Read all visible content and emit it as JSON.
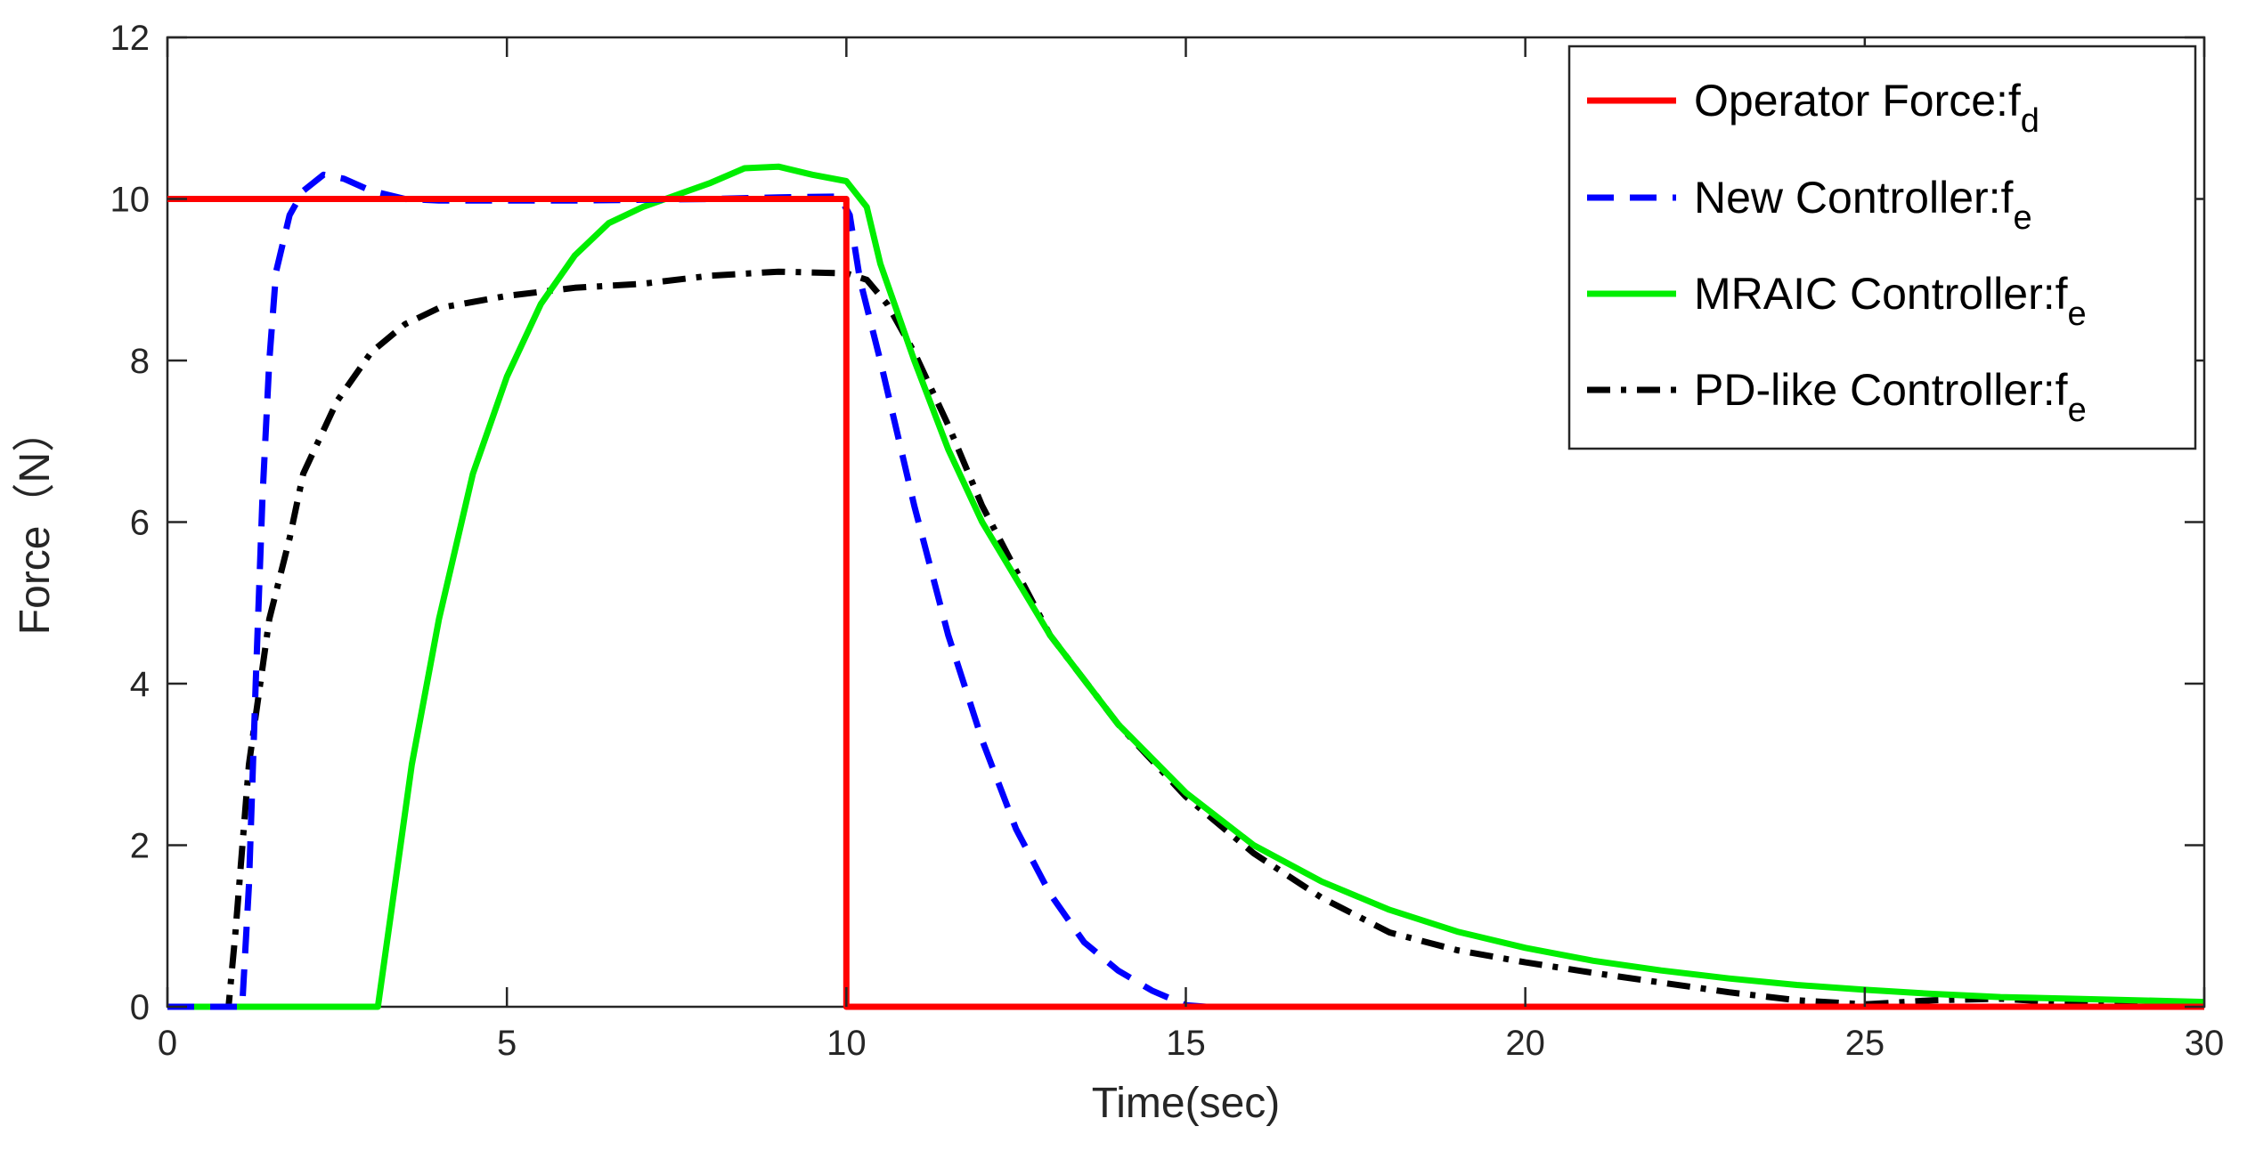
{
  "chart_data": {
    "type": "line",
    "xlabel": "Time(sec)",
    "ylabel": "Force（N）",
    "xlim": [
      0,
      30
    ],
    "ylim": [
      0,
      12
    ],
    "xticks": [
      0,
      5,
      10,
      15,
      20,
      25,
      30
    ],
    "yticks": [
      0,
      2,
      4,
      6,
      8,
      10,
      12
    ],
    "grid": false,
    "legend_position": "top-right",
    "series": [
      {
        "name": "Operator Force:f",
        "subscript": "d",
        "color": "#ff0000",
        "style": "solid",
        "points": [
          [
            0,
            10
          ],
          [
            10,
            10
          ],
          [
            10,
            0
          ],
          [
            30,
            0
          ]
        ]
      },
      {
        "name": "New Controller:f",
        "subscript": "e",
        "color": "#0000ff",
        "style": "dashed",
        "points": [
          [
            0,
            0
          ],
          [
            1.1,
            0
          ],
          [
            1.2,
            1.5
          ],
          [
            1.3,
            4
          ],
          [
            1.4,
            6.3
          ],
          [
            1.5,
            8
          ],
          [
            1.6,
            9.1
          ],
          [
            1.8,
            9.8
          ],
          [
            2.0,
            10.1
          ],
          [
            2.3,
            10.3
          ],
          [
            2.6,
            10.25
          ],
          [
            3.0,
            10.1
          ],
          [
            3.5,
            10.0
          ],
          [
            4,
            9.98
          ],
          [
            6,
            9.98
          ],
          [
            8,
            10.0
          ],
          [
            9,
            10.02
          ],
          [
            9.9,
            10.03
          ],
          [
            10.05,
            9.8
          ],
          [
            10.2,
            9.0
          ],
          [
            10.5,
            8.0
          ],
          [
            11,
            6.2
          ],
          [
            11.5,
            4.6
          ],
          [
            12,
            3.3
          ],
          [
            12.5,
            2.2
          ],
          [
            13,
            1.4
          ],
          [
            13.5,
            0.8
          ],
          [
            14,
            0.45
          ],
          [
            14.5,
            0.2
          ],
          [
            15,
            0.02
          ],
          [
            15.3,
            0
          ],
          [
            30,
            0
          ]
        ]
      },
      {
        "name": "MRAIC Controller:f",
        "subscript": "e",
        "color": "#00ee00",
        "style": "solid",
        "points": [
          [
            0,
            0
          ],
          [
            3.1,
            0
          ],
          [
            3.3,
            1.2
          ],
          [
            3.6,
            3.0
          ],
          [
            4,
            4.8
          ],
          [
            4.5,
            6.6
          ],
          [
            5,
            7.8
          ],
          [
            5.5,
            8.7
          ],
          [
            6,
            9.3
          ],
          [
            6.5,
            9.7
          ],
          [
            7,
            9.9
          ],
          [
            7.5,
            10.05
          ],
          [
            8,
            10.2
          ],
          [
            8.5,
            10.38
          ],
          [
            9,
            10.4
          ],
          [
            9.5,
            10.3
          ],
          [
            10.0,
            10.22
          ],
          [
            10.3,
            9.9
          ],
          [
            10.5,
            9.2
          ],
          [
            11,
            8.0
          ],
          [
            11.5,
            6.9
          ],
          [
            12,
            6.0
          ],
          [
            13,
            4.6
          ],
          [
            14,
            3.5
          ],
          [
            15,
            2.65
          ],
          [
            16,
            2.0
          ],
          [
            17,
            1.55
          ],
          [
            18,
            1.2
          ],
          [
            19,
            0.93
          ],
          [
            20,
            0.73
          ],
          [
            21,
            0.57
          ],
          [
            22,
            0.45
          ],
          [
            23,
            0.35
          ],
          [
            24,
            0.27
          ],
          [
            25,
            0.21
          ],
          [
            26,
            0.16
          ],
          [
            27,
            0.12
          ],
          [
            28,
            0.1
          ],
          [
            29,
            0.08
          ],
          [
            30,
            0.06
          ]
        ]
      },
      {
        "name": "PD-like Controller:f",
        "subscript": "e",
        "color": "#000000",
        "style": "dashdot",
        "points": [
          [
            0,
            0
          ],
          [
            0.9,
            0
          ],
          [
            1.0,
            0.9
          ],
          [
            1.2,
            3.0
          ],
          [
            1.5,
            4.8
          ],
          [
            1.8,
            5.8
          ],
          [
            2,
            6.6
          ],
          [
            2.5,
            7.5
          ],
          [
            3,
            8.1
          ],
          [
            3.5,
            8.45
          ],
          [
            4,
            8.65
          ],
          [
            5,
            8.8
          ],
          [
            6,
            8.9
          ],
          [
            7,
            8.95
          ],
          [
            8,
            9.05
          ],
          [
            9,
            9.1
          ],
          [
            10,
            9.08
          ],
          [
            10.3,
            9.0
          ],
          [
            10.6,
            8.7
          ],
          [
            11,
            8.1
          ],
          [
            11.5,
            7.2
          ],
          [
            12,
            6.2
          ],
          [
            13,
            4.6
          ],
          [
            14,
            3.5
          ],
          [
            15,
            2.6
          ],
          [
            16,
            1.9
          ],
          [
            17,
            1.35
          ],
          [
            18,
            0.92
          ],
          [
            19,
            0.7
          ],
          [
            20,
            0.55
          ],
          [
            21,
            0.42
          ],
          [
            22,
            0.3
          ],
          [
            23,
            0.18
          ],
          [
            24,
            0.08
          ],
          [
            25,
            0.03
          ],
          [
            26,
            0.08
          ],
          [
            27,
            0.1
          ],
          [
            28,
            0.05
          ],
          [
            29,
            0.01
          ],
          [
            30,
            0
          ]
        ]
      }
    ]
  }
}
